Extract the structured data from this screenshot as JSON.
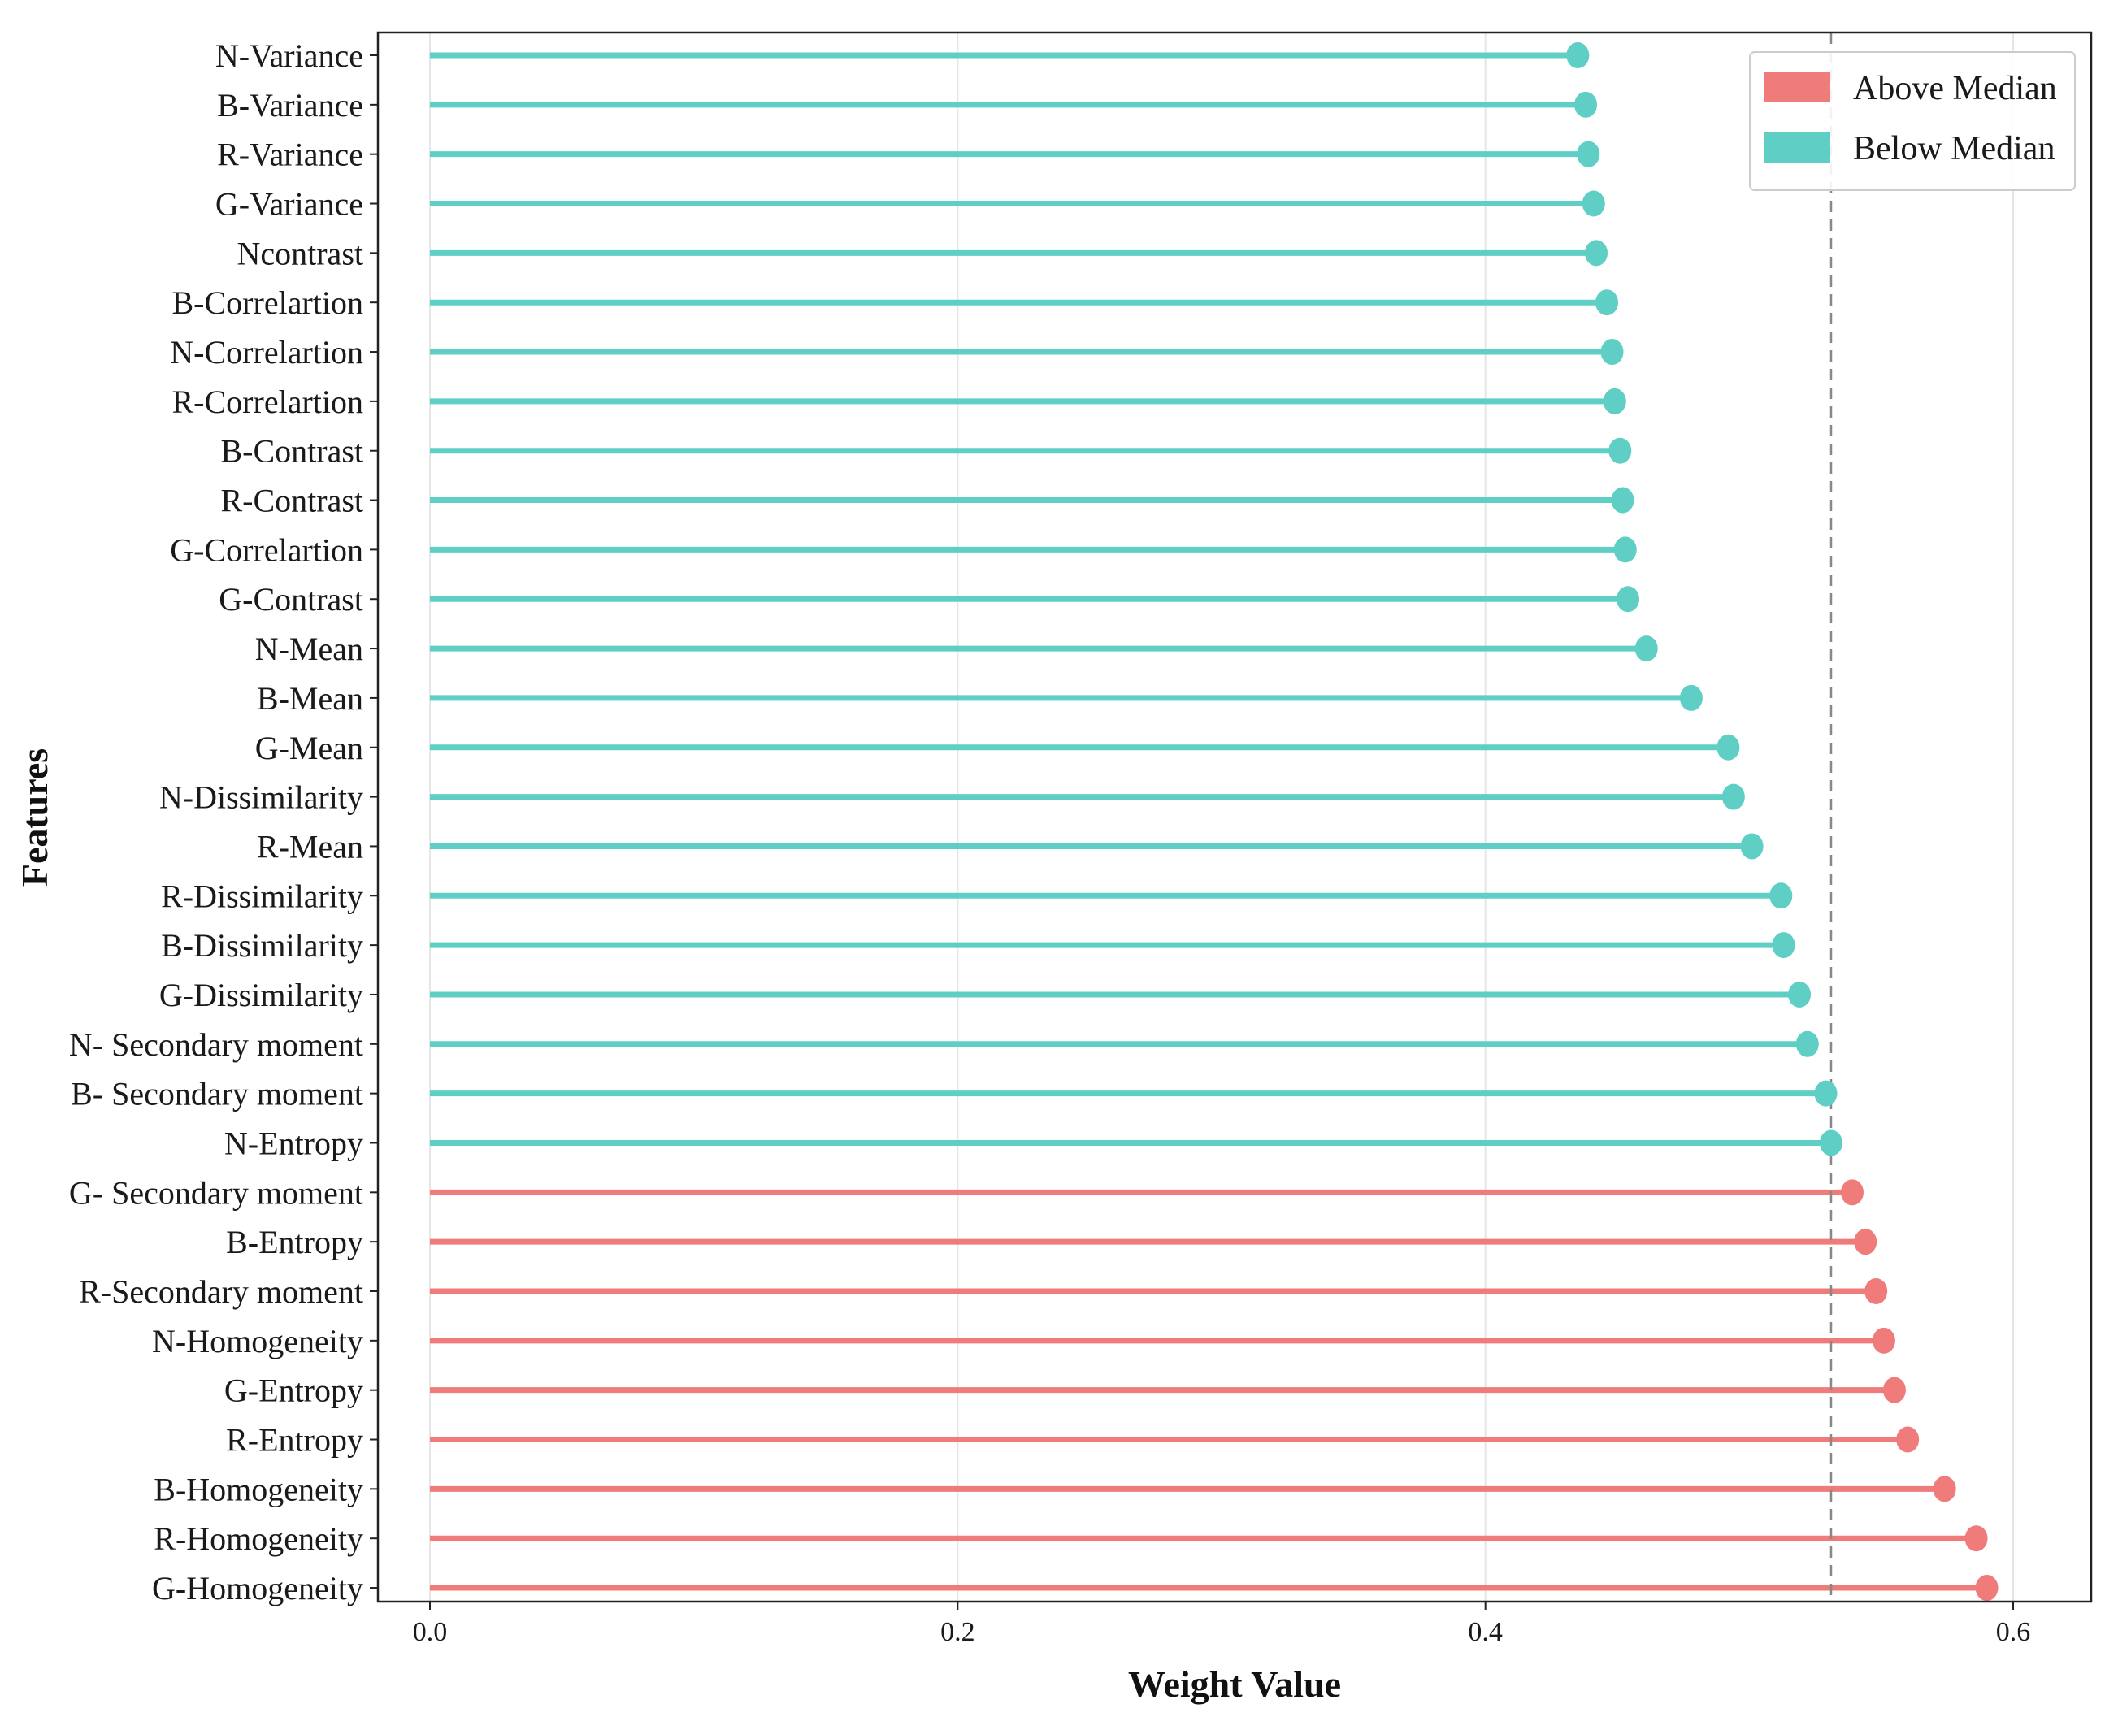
{
  "chart_data": {
    "type": "lollipop",
    "orientation": "horizontal",
    "title": "",
    "xlabel": "Weight Value",
    "ylabel": "Features",
    "xlim": [
      -0.02,
      0.63
    ],
    "xticks": [
      0.0,
      0.2,
      0.4,
      0.6
    ],
    "xtick_labels": [
      "0.0",
      "0.2",
      "0.4",
      "0.6"
    ],
    "grid": "vertical",
    "median": 0.531,
    "colors": {
      "above": "#f07b7b",
      "below": "#5fcfc6",
      "median_line": "#888888"
    },
    "legend": {
      "position": "top-right",
      "entries": [
        {
          "label": "Above Median",
          "color": "#f07b7b",
          "group": "above"
        },
        {
          "label": "Below Median",
          "color": "#5fcfc6",
          "group": "below"
        }
      ]
    },
    "points": [
      {
        "feature": "N-Variance",
        "value": 0.435,
        "group": "below"
      },
      {
        "feature": "B-Variance",
        "value": 0.438,
        "group": "below"
      },
      {
        "feature": "R-Variance",
        "value": 0.439,
        "group": "below"
      },
      {
        "feature": "G-Variance",
        "value": 0.441,
        "group": "below"
      },
      {
        "feature": "Ncontrast",
        "value": 0.442,
        "group": "below"
      },
      {
        "feature": "B-Correlartion",
        "value": 0.446,
        "group": "below"
      },
      {
        "feature": "N-Correlartion",
        "value": 0.448,
        "group": "below"
      },
      {
        "feature": "R-Correlartion",
        "value": 0.449,
        "group": "below"
      },
      {
        "feature": "B-Contrast",
        "value": 0.451,
        "group": "below"
      },
      {
        "feature": "R-Contrast",
        "value": 0.452,
        "group": "below"
      },
      {
        "feature": "G-Correlartion",
        "value": 0.453,
        "group": "below"
      },
      {
        "feature": "G-Contrast",
        "value": 0.454,
        "group": "below"
      },
      {
        "feature": "N-Mean",
        "value": 0.461,
        "group": "below"
      },
      {
        "feature": "B-Mean",
        "value": 0.478,
        "group": "below"
      },
      {
        "feature": "G-Mean",
        "value": 0.492,
        "group": "below"
      },
      {
        "feature": "N-Dissimilarity",
        "value": 0.494,
        "group": "below"
      },
      {
        "feature": "R-Mean",
        "value": 0.501,
        "group": "below"
      },
      {
        "feature": "R-Dissimilarity",
        "value": 0.512,
        "group": "below"
      },
      {
        "feature": "B-Dissimilarity",
        "value": 0.513,
        "group": "below"
      },
      {
        "feature": "G-Dissimilarity",
        "value": 0.519,
        "group": "below"
      },
      {
        "feature": "N- Secondary moment",
        "value": 0.522,
        "group": "below"
      },
      {
        "feature": "B- Secondary moment",
        "value": 0.529,
        "group": "below"
      },
      {
        "feature": "N-Entropy",
        "value": 0.531,
        "group": "below"
      },
      {
        "feature": "G- Secondary moment",
        "value": 0.539,
        "group": "above"
      },
      {
        "feature": "B-Entropy",
        "value": 0.544,
        "group": "above"
      },
      {
        "feature": "R-Secondary moment",
        "value": 0.548,
        "group": "above"
      },
      {
        "feature": "N-Homogeneity",
        "value": 0.551,
        "group": "above"
      },
      {
        "feature": "G-Entropy",
        "value": 0.555,
        "group": "above"
      },
      {
        "feature": "R-Entropy",
        "value": 0.56,
        "group": "above"
      },
      {
        "feature": "B-Homogeneity",
        "value": 0.574,
        "group": "above"
      },
      {
        "feature": "R-Homogeneity",
        "value": 0.586,
        "group": "above"
      },
      {
        "feature": "G-Homogeneity",
        "value": 0.59,
        "group": "above"
      }
    ]
  }
}
